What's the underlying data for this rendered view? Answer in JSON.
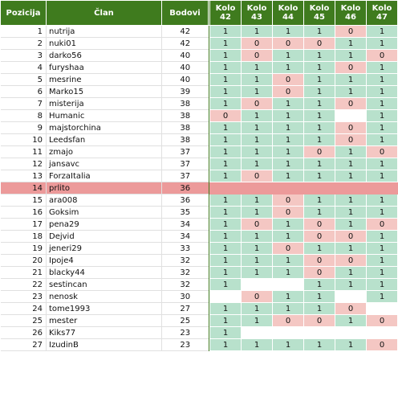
{
  "table": {
    "headers": {
      "position": "Pozicija",
      "member": "Član",
      "points": "Bodovi",
      "rounds": [
        "Kolo 42",
        "Kolo 43",
        "Kolo 44",
        "Kolo 45",
        "Kolo 46",
        "Kolo 47"
      ]
    },
    "highlight_color": "#ec9a9a",
    "header_color": "#3f7b1e",
    "win_color": "#b8e1cc",
    "loss_color": "#f4c7c3",
    "rows": [
      {
        "pos": "1",
        "name": "nutrija",
        "pts": "42",
        "r": [
          "1",
          "1",
          "1",
          "1",
          "0",
          "1"
        ]
      },
      {
        "pos": "2",
        "name": "nuki01",
        "pts": "42",
        "r": [
          "1",
          "0",
          "0",
          "0",
          "1",
          "1"
        ]
      },
      {
        "pos": "3",
        "name": "darko56",
        "pts": "40",
        "r": [
          "1",
          "0",
          "1",
          "1",
          "1",
          "0"
        ]
      },
      {
        "pos": "4",
        "name": "furyshaa",
        "pts": "40",
        "r": [
          "1",
          "1",
          "1",
          "1",
          "0",
          "1"
        ]
      },
      {
        "pos": "5",
        "name": "mesrine",
        "pts": "40",
        "r": [
          "1",
          "1",
          "0",
          "1",
          "1",
          "1"
        ]
      },
      {
        "pos": "6",
        "name": "Marko15",
        "pts": "39",
        "r": [
          "1",
          "1",
          "0",
          "1",
          "1",
          "1"
        ]
      },
      {
        "pos": "7",
        "name": "misterija",
        "pts": "38",
        "r": [
          "1",
          "0",
          "1",
          "1",
          "0",
          "1"
        ]
      },
      {
        "pos": "8",
        "name": "Humanic",
        "pts": "38",
        "r": [
          "0",
          "1",
          "1",
          "1",
          "",
          "1"
        ]
      },
      {
        "pos": "9",
        "name": "majstorchina",
        "pts": "38",
        "r": [
          "1",
          "1",
          "1",
          "1",
          "0",
          "1"
        ]
      },
      {
        "pos": "10",
        "name": "Leedsfan",
        "pts": "38",
        "r": [
          "1",
          "1",
          "1",
          "1",
          "0",
          "1"
        ]
      },
      {
        "pos": "11",
        "name": "zmajo",
        "pts": "37",
        "r": [
          "1",
          "1",
          "1",
          "0",
          "1",
          "0"
        ]
      },
      {
        "pos": "12",
        "name": "jansavc",
        "pts": "37",
        "r": [
          "1",
          "1",
          "1",
          "1",
          "1",
          "1"
        ]
      },
      {
        "pos": "13",
        "name": "ForzaItalia",
        "pts": "37",
        "r": [
          "1",
          "0",
          "1",
          "1",
          "1",
          "1"
        ]
      },
      {
        "pos": "14",
        "name": "prlito",
        "pts": "36",
        "r": [
          "",
          "",
          "",
          "",
          "",
          ""
        ],
        "highlight": true
      },
      {
        "pos": "15",
        "name": "ara008",
        "pts": "36",
        "r": [
          "1",
          "1",
          "0",
          "1",
          "1",
          "1"
        ]
      },
      {
        "pos": "16",
        "name": "Goksim",
        "pts": "35",
        "r": [
          "1",
          "1",
          "0",
          "1",
          "1",
          "1"
        ]
      },
      {
        "pos": "17",
        "name": "pena29",
        "pts": "34",
        "r": [
          "1",
          "0",
          "1",
          "0",
          "1",
          "0"
        ]
      },
      {
        "pos": "18",
        "name": "Dejvid",
        "pts": "34",
        "r": [
          "1",
          "1",
          "1",
          "0",
          "0",
          "1"
        ]
      },
      {
        "pos": "19",
        "name": "jeneri29",
        "pts": "33",
        "r": [
          "1",
          "1",
          "0",
          "1",
          "1",
          "1"
        ]
      },
      {
        "pos": "20",
        "name": "Ipoje4",
        "pts": "32",
        "r": [
          "1",
          "1",
          "1",
          "0",
          "0",
          "1"
        ]
      },
      {
        "pos": "21",
        "name": "blacky44",
        "pts": "32",
        "r": [
          "1",
          "1",
          "1",
          "0",
          "1",
          "1"
        ]
      },
      {
        "pos": "22",
        "name": "sestincan",
        "pts": "32",
        "r": [
          "1",
          "",
          "",
          "1",
          "1",
          "1"
        ]
      },
      {
        "pos": "23",
        "name": "nenosk",
        "pts": "30",
        "r": [
          "",
          "0",
          "1",
          "1",
          "",
          "1"
        ]
      },
      {
        "pos": "24",
        "name": "tome1993",
        "pts": "27",
        "r": [
          "1",
          "1",
          "1",
          "1",
          "0",
          ""
        ]
      },
      {
        "pos": "25",
        "name": "mester",
        "pts": "25",
        "r": [
          "1",
          "1",
          "0",
          "0",
          "1",
          "0"
        ]
      },
      {
        "pos": "26",
        "name": "Kiks77",
        "pts": "23",
        "r": [
          "1",
          "",
          "",
          "",
          "",
          ""
        ]
      },
      {
        "pos": "27",
        "name": "IzudinB",
        "pts": "23",
        "r": [
          "1",
          "1",
          "1",
          "1",
          "1",
          "0"
        ]
      }
    ]
  }
}
